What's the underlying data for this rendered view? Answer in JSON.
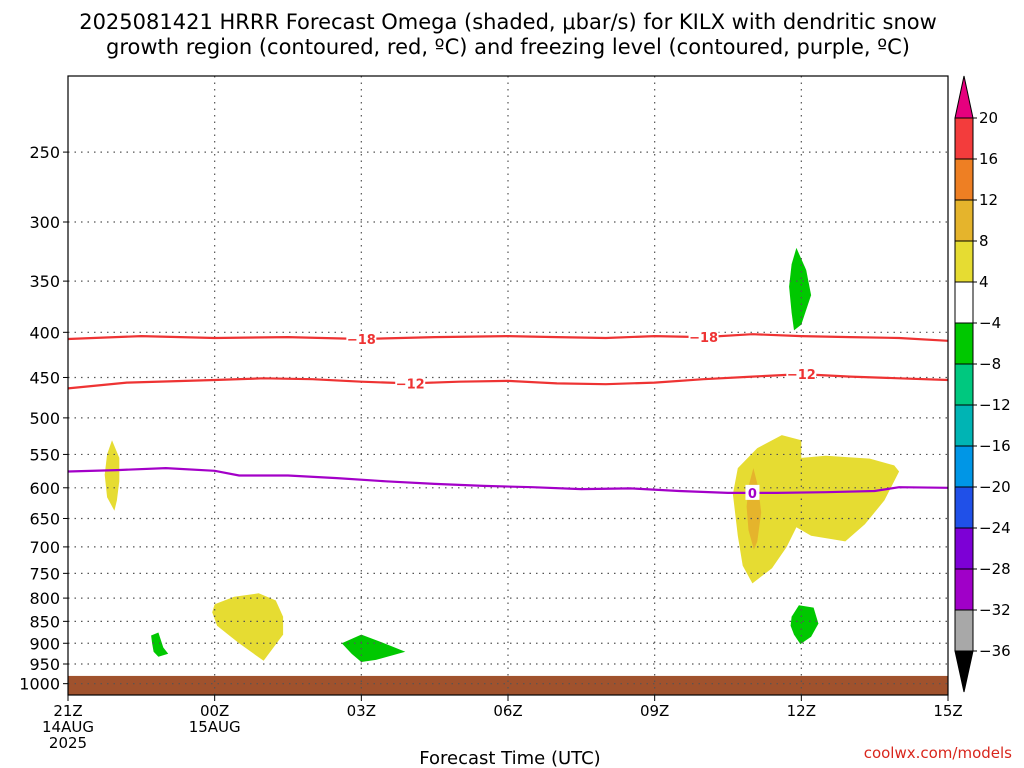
{
  "title_line1": "2025081421 HRRR Forecast Omega (shaded, μbar/s) for KILX with dendritic snow",
  "title_line2": "growth region (contoured, red, ºC) and freezing level (contoured, purple, ºC)",
  "credit": "coolwx.com/models",
  "chart_data": {
    "type": "time-height contour",
    "title": "2025081421 HRRR Forecast Omega (shaded, μbar/s) for KILX with dendritic snow growth region (contoured, red, ºC) and freezing level (contoured, purple, ºC)",
    "xlabel": "Forecast Time (UTC)",
    "ylabel": "",
    "x_unit": "forecast hours from 2025-08-14 21Z",
    "xlim": [
      0,
      18
    ],
    "y_unit": "hPa",
    "y_scale": "log-pressure (inverted)",
    "ylim": [
      1030,
      205
    ],
    "grid": true,
    "x_ticks": [
      {
        "x": 0,
        "line1": "21Z",
        "line2": "14AUG",
        "line3": "2025"
      },
      {
        "x": 3,
        "line1": "00Z",
        "line2": "15AUG",
        "line3": ""
      },
      {
        "x": 6,
        "line1": "03Z",
        "line2": "",
        "line3": ""
      },
      {
        "x": 9,
        "line1": "06Z",
        "line2": "",
        "line3": ""
      },
      {
        "x": 12,
        "line1": "09Z",
        "line2": "",
        "line3": ""
      },
      {
        "x": 15,
        "line1": "12Z",
        "line2": "",
        "line3": ""
      },
      {
        "x": 18,
        "line1": "15Z",
        "line2": "",
        "line3": ""
      }
    ],
    "y_ticks": [
      {
        "p": 250,
        "label": "250"
      },
      {
        "p": 300,
        "label": "300"
      },
      {
        "p": 350,
        "label": "350"
      },
      {
        "p": 400,
        "label": "400"
      },
      {
        "p": 450,
        "label": "450"
      },
      {
        "p": 500,
        "label": "500"
      },
      {
        "p": 550,
        "label": "550"
      },
      {
        "p": 600,
        "label": "600"
      },
      {
        "p": 650,
        "label": "650"
      },
      {
        "p": 700,
        "label": "700"
      },
      {
        "p": 750,
        "label": "750"
      },
      {
        "p": 800,
        "label": "800"
      },
      {
        "p": 850,
        "label": "850"
      },
      {
        "p": 900,
        "label": "900"
      },
      {
        "p": 950,
        "label": "950"
      },
      {
        "p": 1000,
        "label": "1000"
      }
    ],
    "colorbar": {
      "unit": "μbar/s",
      "bands": [
        {
          "from": 20,
          "to": 24,
          "color": "#e6007e"
        },
        {
          "from": 16,
          "to": 20,
          "color": "#f33c3c"
        },
        {
          "from": 12,
          "to": 16,
          "color": "#ee7f23"
        },
        {
          "from": 8,
          "to": 12,
          "color": "#e5b42c"
        },
        {
          "from": 4,
          "to": 8,
          "color": "#e6dc32"
        },
        {
          "from": -4,
          "to": 4,
          "color": "#ffffff"
        },
        {
          "from": -8,
          "to": -4,
          "color": "#00c800"
        },
        {
          "from": -12,
          "to": -8,
          "color": "#00c87f"
        },
        {
          "from": -16,
          "to": -12,
          "color": "#00b4b4"
        },
        {
          "from": -20,
          "to": -16,
          "color": "#0096e6"
        },
        {
          "from": -24,
          "to": -20,
          "color": "#2050e8"
        },
        {
          "from": -28,
          "to": -24,
          "color": "#7d00d6"
        },
        {
          "from": -32,
          "to": -28,
          "color": "#a000c8"
        },
        {
          "from": -36,
          "to": -32,
          "color": "#a8a8a8"
        },
        {
          "from": -40,
          "to": -36,
          "color": "#000000"
        }
      ],
      "tick_labels": [
        "20",
        "16",
        "12",
        "8",
        "4",
        "−4",
        "−8",
        "−12",
        "−16",
        "−20",
        "−24",
        "−28",
        "−32",
        "−36"
      ],
      "tick_values": [
        20,
        16,
        12,
        8,
        4,
        -4,
        -8,
        -12,
        -16,
        -20,
        -24,
        -28,
        -32,
        -36
      ]
    },
    "contours": [
      {
        "name": "-18",
        "label": "−18",
        "color": "#ee3333",
        "points": [
          [
            0,
            407
          ],
          [
            1.5,
            404
          ],
          [
            3,
            406
          ],
          [
            4.5,
            405
          ],
          [
            6,
            407
          ],
          [
            7.5,
            405
          ],
          [
            9,
            404
          ],
          [
            10,
            405
          ],
          [
            11,
            406
          ],
          [
            12,
            404
          ],
          [
            13,
            405
          ],
          [
            14,
            402
          ],
          [
            15,
            404
          ],
          [
            16,
            405
          ],
          [
            17,
            406
          ],
          [
            18,
            409
          ]
        ],
        "label_x": [
          6,
          13
        ]
      },
      {
        "name": "-12",
        "label": "−12",
        "color": "#ee3333",
        "points": [
          [
            0,
            463
          ],
          [
            1.2,
            456
          ],
          [
            3,
            453
          ],
          [
            4,
            451
          ],
          [
            5,
            452
          ],
          [
            6,
            455
          ],
          [
            7,
            457
          ],
          [
            8,
            455
          ],
          [
            9,
            454
          ],
          [
            10,
            457
          ],
          [
            11,
            458
          ],
          [
            12,
            456
          ],
          [
            13,
            452
          ],
          [
            14,
            449
          ],
          [
            15,
            446
          ],
          [
            16,
            449
          ],
          [
            17,
            451
          ],
          [
            18,
            453
          ]
        ],
        "label_x": [
          7,
          15
        ]
      },
      {
        "name": "0",
        "label": "0",
        "color": "#a300c8",
        "points": [
          [
            0,
            575
          ],
          [
            1,
            573
          ],
          [
            2,
            570
          ],
          [
            3,
            574
          ],
          [
            3.5,
            581
          ],
          [
            4.5,
            581
          ],
          [
            5.5,
            585
          ],
          [
            6.5,
            590
          ],
          [
            7.5,
            594
          ],
          [
            8.5,
            597
          ],
          [
            9.5,
            599
          ],
          [
            10.5,
            602
          ],
          [
            11.5,
            601
          ],
          [
            12.5,
            605
          ],
          [
            13.5,
            608
          ],
          [
            14.5,
            608
          ],
          [
            15.5,
            607
          ],
          [
            16.5,
            605
          ],
          [
            17,
            599
          ],
          [
            18,
            600
          ]
        ],
        "label_x": [
          14
        ]
      }
    ],
    "omega_regions": [
      {
        "band": "4 to 8",
        "color": "#e6dc32",
        "points": [
          [
            0.9,
            530
          ],
          [
            1.05,
            555
          ],
          [
            1.05,
            590
          ],
          [
            1.0,
            620
          ],
          [
            0.95,
            637
          ],
          [
            0.8,
            615
          ],
          [
            0.75,
            580
          ],
          [
            0.8,
            550
          ]
        ]
      },
      {
        "band": "4 to 8",
        "color": "#e6dc32",
        "points": [
          [
            3.0,
            813
          ],
          [
            3.4,
            797
          ],
          [
            3.9,
            790
          ],
          [
            4.25,
            805
          ],
          [
            4.4,
            840
          ],
          [
            4.4,
            880
          ],
          [
            4.0,
            942
          ],
          [
            3.5,
            900
          ],
          [
            3.05,
            860
          ],
          [
            2.95,
            830
          ]
        ]
      },
      {
        "band": "4 to 8",
        "color": "#e6dc32",
        "points": [
          [
            13.6,
            610
          ],
          [
            13.7,
            570
          ],
          [
            14.1,
            541
          ],
          [
            14.6,
            523
          ],
          [
            15.0,
            530
          ],
          [
            15.0,
            555
          ],
          [
            15.5,
            552
          ],
          [
            16.4,
            556
          ],
          [
            16.9,
            566
          ],
          [
            17.0,
            575
          ],
          [
            16.7,
            620
          ],
          [
            16.3,
            660
          ],
          [
            15.9,
            690
          ],
          [
            15.2,
            680
          ],
          [
            14.9,
            665
          ],
          [
            14.7,
            700
          ],
          [
            14.4,
            740
          ],
          [
            14.0,
            770
          ],
          [
            13.8,
            735
          ],
          [
            13.7,
            680
          ]
        ]
      },
      {
        "band": "8 to 12",
        "color": "#e5b42c",
        "points": [
          [
            14.02,
            570
          ],
          [
            14.12,
            600
          ],
          [
            14.18,
            640
          ],
          [
            14.1,
            690
          ],
          [
            14.03,
            705
          ],
          [
            13.92,
            670
          ],
          [
            13.88,
            630
          ],
          [
            13.93,
            595
          ]
        ]
      },
      {
        "band": "-8 to -4",
        "color": "#00c800",
        "points": [
          [
            14.8,
            335
          ],
          [
            14.9,
            321
          ],
          [
            15.1,
            340
          ],
          [
            15.2,
            363
          ],
          [
            15.0,
            392
          ],
          [
            14.85,
            398
          ],
          [
            14.8,
            380
          ],
          [
            14.75,
            355
          ]
        ]
      },
      {
        "band": "-8 to -4",
        "color": "#00c800",
        "points": [
          [
            1.7,
            882
          ],
          [
            1.85,
            875
          ],
          [
            1.95,
            910
          ],
          [
            2.05,
            925
          ],
          [
            1.85,
            932
          ],
          [
            1.75,
            920
          ],
          [
            1.72,
            900
          ]
        ]
      },
      {
        "band": "-8 to -4",
        "color": "#00c800",
        "points": [
          [
            5.6,
            900
          ],
          [
            6.0,
            880
          ],
          [
            6.4,
            897
          ],
          [
            6.9,
            920
          ],
          [
            6.3,
            940
          ],
          [
            6.0,
            945
          ],
          [
            5.8,
            925
          ]
        ]
      },
      {
        "band": "-8 to -4",
        "color": "#00c800",
        "points": [
          [
            14.8,
            840
          ],
          [
            14.95,
            815
          ],
          [
            15.25,
            820
          ],
          [
            15.35,
            855
          ],
          [
            15.2,
            885
          ],
          [
            14.98,
            902
          ],
          [
            14.85,
            880
          ],
          [
            14.78,
            860
          ]
        ]
      }
    ],
    "terrain": {
      "color": "#a0522d",
      "top_hPa": 980
    }
  }
}
